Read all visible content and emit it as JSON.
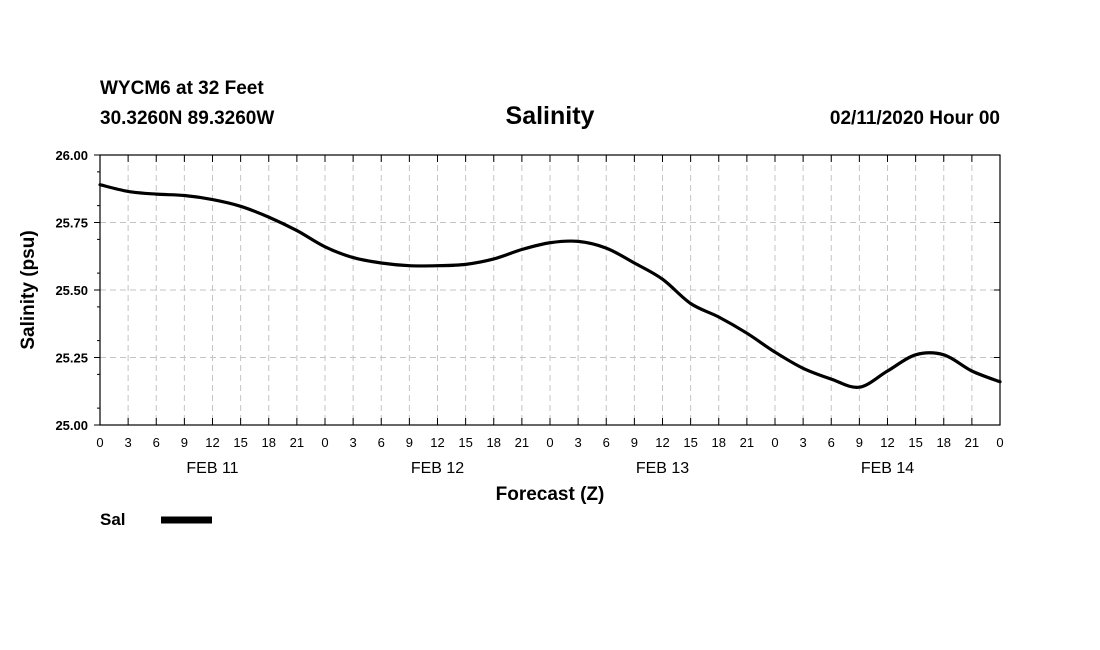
{
  "header": {
    "station": "WYCM6 at 32 Feet",
    "coords": "30.3260N 89.3260W",
    "title": "Salinity",
    "issued": "02/11/2020 Hour 00"
  },
  "chart_data": {
    "type": "line",
    "title": "Salinity",
    "xlabel": "Forecast (Z)",
    "ylabel": "Salinity (psu)",
    "ylim": [
      25.0,
      26.0
    ],
    "yticks": [
      "25.00",
      "25.25",
      "25.50",
      "25.75",
      "26.00"
    ],
    "xlim_hours": [
      0,
      96
    ],
    "xtick_labels": [
      "0",
      "3",
      "6",
      "9",
      "12",
      "15",
      "18",
      "21",
      "0",
      "3",
      "6",
      "9",
      "12",
      "15",
      "18",
      "21",
      "0",
      "3",
      "6",
      "9",
      "12",
      "15",
      "18",
      "21",
      "0",
      "3",
      "6",
      "9",
      "12",
      "15",
      "18",
      "21",
      "0"
    ],
    "day_labels": [
      {
        "label": "FEB 11",
        "hour": 12
      },
      {
        "label": "FEB 12",
        "hour": 36
      },
      {
        "label": "FEB 13",
        "hour": 60
      },
      {
        "label": "FEB 14",
        "hour": 84
      }
    ],
    "grid": true,
    "legend_position": "bottom-left",
    "series": [
      {
        "name": "Sal",
        "color": "#000000",
        "x": [
          0,
          3,
          6,
          9,
          12,
          15,
          18,
          21,
          24,
          27,
          30,
          33,
          36,
          39,
          42,
          45,
          48,
          51,
          54,
          57,
          60,
          63,
          66,
          69,
          72,
          75,
          78,
          81,
          84,
          87,
          90,
          93,
          96
        ],
        "y": [
          25.89,
          25.865,
          25.855,
          25.85,
          25.835,
          25.81,
          25.77,
          25.72,
          25.66,
          25.62,
          25.6,
          25.59,
          25.59,
          25.595,
          25.615,
          25.65,
          25.675,
          25.68,
          25.655,
          25.6,
          25.54,
          25.45,
          25.4,
          25.34,
          25.27,
          25.21,
          25.17,
          25.14,
          25.2,
          25.26,
          25.26,
          25.2,
          25.16
        ]
      }
    ]
  }
}
